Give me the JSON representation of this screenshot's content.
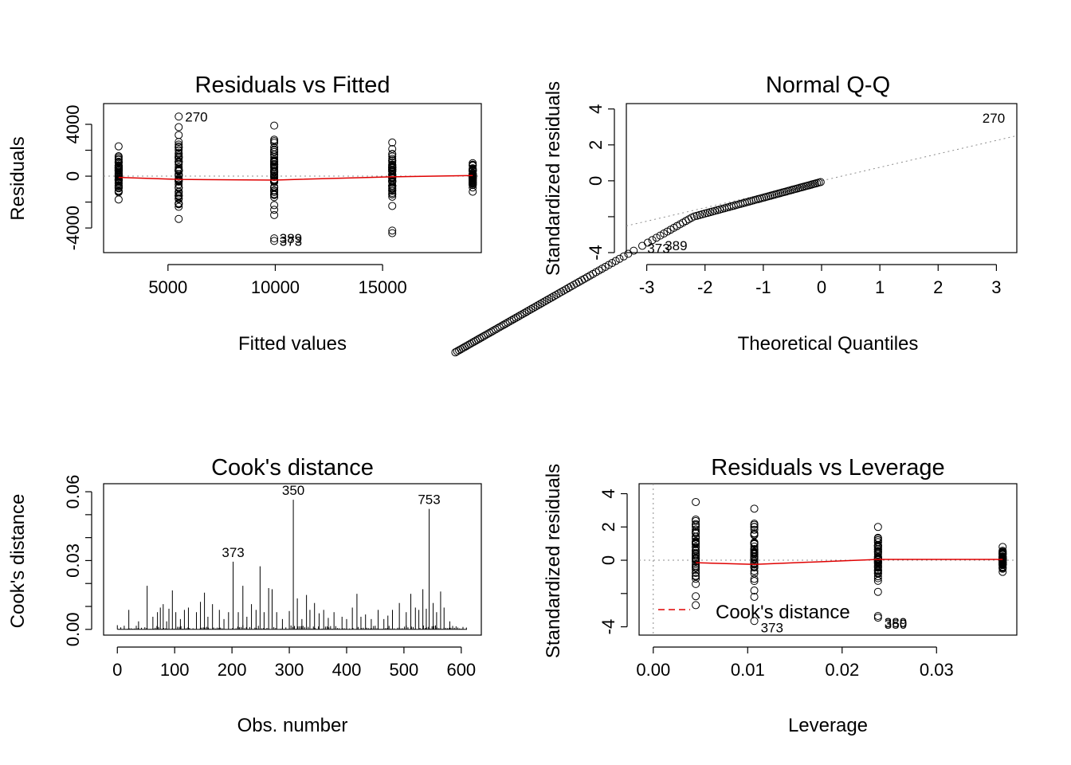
{
  "chart_data": [
    {
      "type": "scatter",
      "title": "Residuals vs Fitted",
      "xlabel": "Fitted values",
      "ylabel": "Residuals",
      "xlim": [
        2000,
        19600
      ],
      "ylim": [
        -5900,
        5600
      ],
      "xticks": [
        5000,
        10000,
        15000
      ],
      "xtick_labels": [
        "5000",
        "10000",
        "15000"
      ],
      "yticks": [
        -4000,
        0,
        4000
      ],
      "ytick_labels": [
        "-4000",
        "0",
        "4000"
      ],
      "yticks_minor": [
        -2000,
        2000
      ],
      "reference_line": 0,
      "groups": [
        {
          "x": 2700,
          "ymin": -1800,
          "ymax": 2300
        },
        {
          "x": 5500,
          "ymin": -3300,
          "ymax": 4600
        },
        {
          "x": 9950,
          "ymin": -3000,
          "ymax": 3900
        },
        {
          "x": 15450,
          "ymin": -2300,
          "ymax": 2600
        },
        {
          "x": 19200,
          "ymin": -1200,
          "ymax": 1000
        }
      ],
      "extra_points": [
        {
          "x": 9950,
          "y": -4800
        },
        {
          "x": 9950,
          "y": -5000
        },
        {
          "x": 15450,
          "y": -4200
        },
        {
          "x": 15450,
          "y": -4400
        }
      ],
      "outliers": [
        {
          "label": "270",
          "x": 5500,
          "y": 4600
        },
        {
          "label": "389",
          "x": 9900,
          "y": -4800
        },
        {
          "label": "373",
          "x": 9900,
          "y": -5000
        }
      ],
      "smooth": {
        "x": [
          2700,
          5500,
          9950,
          15450,
          19200
        ],
        "y": [
          -100,
          -250,
          -300,
          -50,
          50
        ]
      }
    },
    {
      "type": "scatter",
      "title": "Normal Q-Q",
      "xlabel": "Theoretical Quantiles",
      "ylabel": "Standardized residuals",
      "xlim": [
        -3.35,
        3.35
      ],
      "ylim": [
        -4.0,
        4.3
      ],
      "xticks": [
        -3,
        -2,
        -1,
        0,
        1,
        2,
        3
      ],
      "xtick_labels": [
        "-3",
        "-2",
        "-1",
        "0",
        "1",
        "2",
        "3"
      ],
      "yticks": [
        -4,
        -2,
        0,
        2,
        4
      ],
      "ytick_labels": [
        "-4",
        "",
        "0",
        "2",
        "4"
      ],
      "reference_line": {
        "intercept": 0,
        "slope": 0.75
      },
      "outliers": [
        {
          "label": "270",
          "x": 2.65,
          "y": 3.5
        },
        {
          "label": "373",
          "x": -3.1,
          "y": -3.75
        },
        {
          "label": "389",
          "x": -2.8,
          "y": -3.6
        }
      ]
    },
    {
      "type": "bar",
      "title": "Cook's distance",
      "xlabel": "Obs. number",
      "ylabel": "Cook's distance",
      "xlim": [
        -24,
        635
      ],
      "ylim": [
        -0.0025,
        0.0635
      ],
      "xticks": [
        0,
        100,
        200,
        300,
        400,
        500,
        600
      ],
      "xtick_labels": [
        "0",
        "100",
        "200",
        "300",
        "400",
        "500",
        "600"
      ],
      "yticks": [
        0.0,
        0.03,
        0.06
      ],
      "ytick_labels": [
        "0.00",
        "0.03",
        "0.06"
      ],
      "yticks_minor": [
        0.01,
        0.02,
        0.04,
        0.05
      ],
      "n_obs": 610,
      "peaks": [
        [
          20,
          0.0085
        ],
        [
          37,
          0.0035
        ],
        [
          52,
          0.019
        ],
        [
          62,
          0.0055
        ],
        [
          70,
          0.0075
        ],
        [
          75,
          0.0095
        ],
        [
          80,
          0.011
        ],
        [
          86,
          0.0035
        ],
        [
          90,
          0.009
        ],
        [
          96,
          0.017
        ],
        [
          102,
          0.0075
        ],
        [
          110,
          0.0045
        ],
        [
          117,
          0.0085
        ],
        [
          124,
          0.0095
        ],
        [
          138,
          0.0075
        ],
        [
          145,
          0.012
        ],
        [
          152,
          0.016
        ],
        [
          158,
          0.0055
        ],
        [
          166,
          0.011
        ],
        [
          178,
          0.0085
        ],
        [
          186,
          0.0045
        ],
        [
          194,
          0.0075
        ],
        [
          202,
          0.0295
        ],
        [
          211,
          0.0075
        ],
        [
          219,
          0.019
        ],
        [
          226,
          0.0055
        ],
        [
          234,
          0.011
        ],
        [
          242,
          0.0085
        ],
        [
          249,
          0.0275
        ],
        [
          256,
          0.0075
        ],
        [
          264,
          0.018
        ],
        [
          270,
          0.0175
        ],
        [
          278,
          0.0075
        ],
        [
          288,
          0.0045
        ],
        [
          300,
          0.008
        ],
        [
          307,
          0.0565
        ],
        [
          314,
          0.0135
        ],
        [
          322,
          0.0045
        ],
        [
          330,
          0.015
        ],
        [
          336,
          0.0085
        ],
        [
          344,
          0.0115
        ],
        [
          352,
          0.007
        ],
        [
          360,
          0.0085
        ],
        [
          368,
          0.005
        ],
        [
          378,
          0.0075
        ],
        [
          392,
          0.0055
        ],
        [
          400,
          0.0045
        ],
        [
          410,
          0.0095
        ],
        [
          418,
          0.0155
        ],
        [
          425,
          0.0055
        ],
        [
          433,
          0.0065
        ],
        [
          443,
          0.0045
        ],
        [
          455,
          0.0085
        ],
        [
          465,
          0.0045
        ],
        [
          472,
          0.006
        ],
        [
          480,
          0.0085
        ],
        [
          492,
          0.0115
        ],
        [
          504,
          0.0075
        ],
        [
          512,
          0.0155
        ],
        [
          520,
          0.0095
        ],
        [
          526,
          0.0085
        ],
        [
          533,
          0.0175
        ],
        [
          539,
          0.009
        ],
        [
          544,
          0.0525
        ],
        [
          551,
          0.0115
        ],
        [
          557,
          0.0075
        ],
        [
          564,
          0.0165
        ],
        [
          570,
          0.0095
        ],
        [
          580,
          0.0035
        ]
      ],
      "outliers": [
        {
          "label": "373",
          "x": 202,
          "y": 0.0295
        },
        {
          "label": "350",
          "x": 307,
          "y": 0.0565
        },
        {
          "label": "753",
          "x": 544,
          "y": 0.0525
        }
      ]
    },
    {
      "type": "scatter",
      "title": "Residuals vs Leverage",
      "xlabel": "Leverage",
      "ylabel": "Standardized residuals",
      "xlim": [
        -0.0015,
        0.0385
      ],
      "ylim": [
        -4.5,
        4.6
      ],
      "xticks": [
        0.0,
        0.01,
        0.02,
        0.03
      ],
      "xtick_labels": [
        "0.00",
        "0.01",
        "0.02",
        "0.03"
      ],
      "yticks": [
        -4,
        -2,
        0,
        2,
        4
      ],
      "ytick_labels": [
        "-4",
        "",
        "0",
        "2",
        "4"
      ],
      "reference_line": 0,
      "groups": [
        {
          "x": 0.0045,
          "ymin": -2.7,
          "ymax": 3.5
        },
        {
          "x": 0.0107,
          "ymin": -2.2,
          "ymax": 3.1
        },
        {
          "x": 0.0238,
          "ymin": -1.9,
          "ymax": 2.0
        },
        {
          "x": 0.037,
          "ymin": -0.7,
          "ymax": 0.8
        }
      ],
      "extra_points": [
        {
          "x": 0.0107,
          "y": -3.65
        },
        {
          "x": 0.0238,
          "y": -3.35
        },
        {
          "x": 0.0238,
          "y": -3.45
        }
      ],
      "outliers": [
        {
          "label": "373",
          "x": 0.0107,
          "y": -3.65
        },
        {
          "label": "389",
          "x": 0.0238,
          "y": -3.35
        },
        {
          "label": "350",
          "x": 0.0238,
          "y": -3.45
        }
      ],
      "smooth": {
        "x": [
          0.0045,
          0.0107,
          0.0238,
          0.037
        ],
        "y": [
          -0.15,
          -0.25,
          0.05,
          0.05
        ]
      },
      "legend": {
        "label": "Cook's distance",
        "position": "bottom-left"
      }
    }
  ]
}
